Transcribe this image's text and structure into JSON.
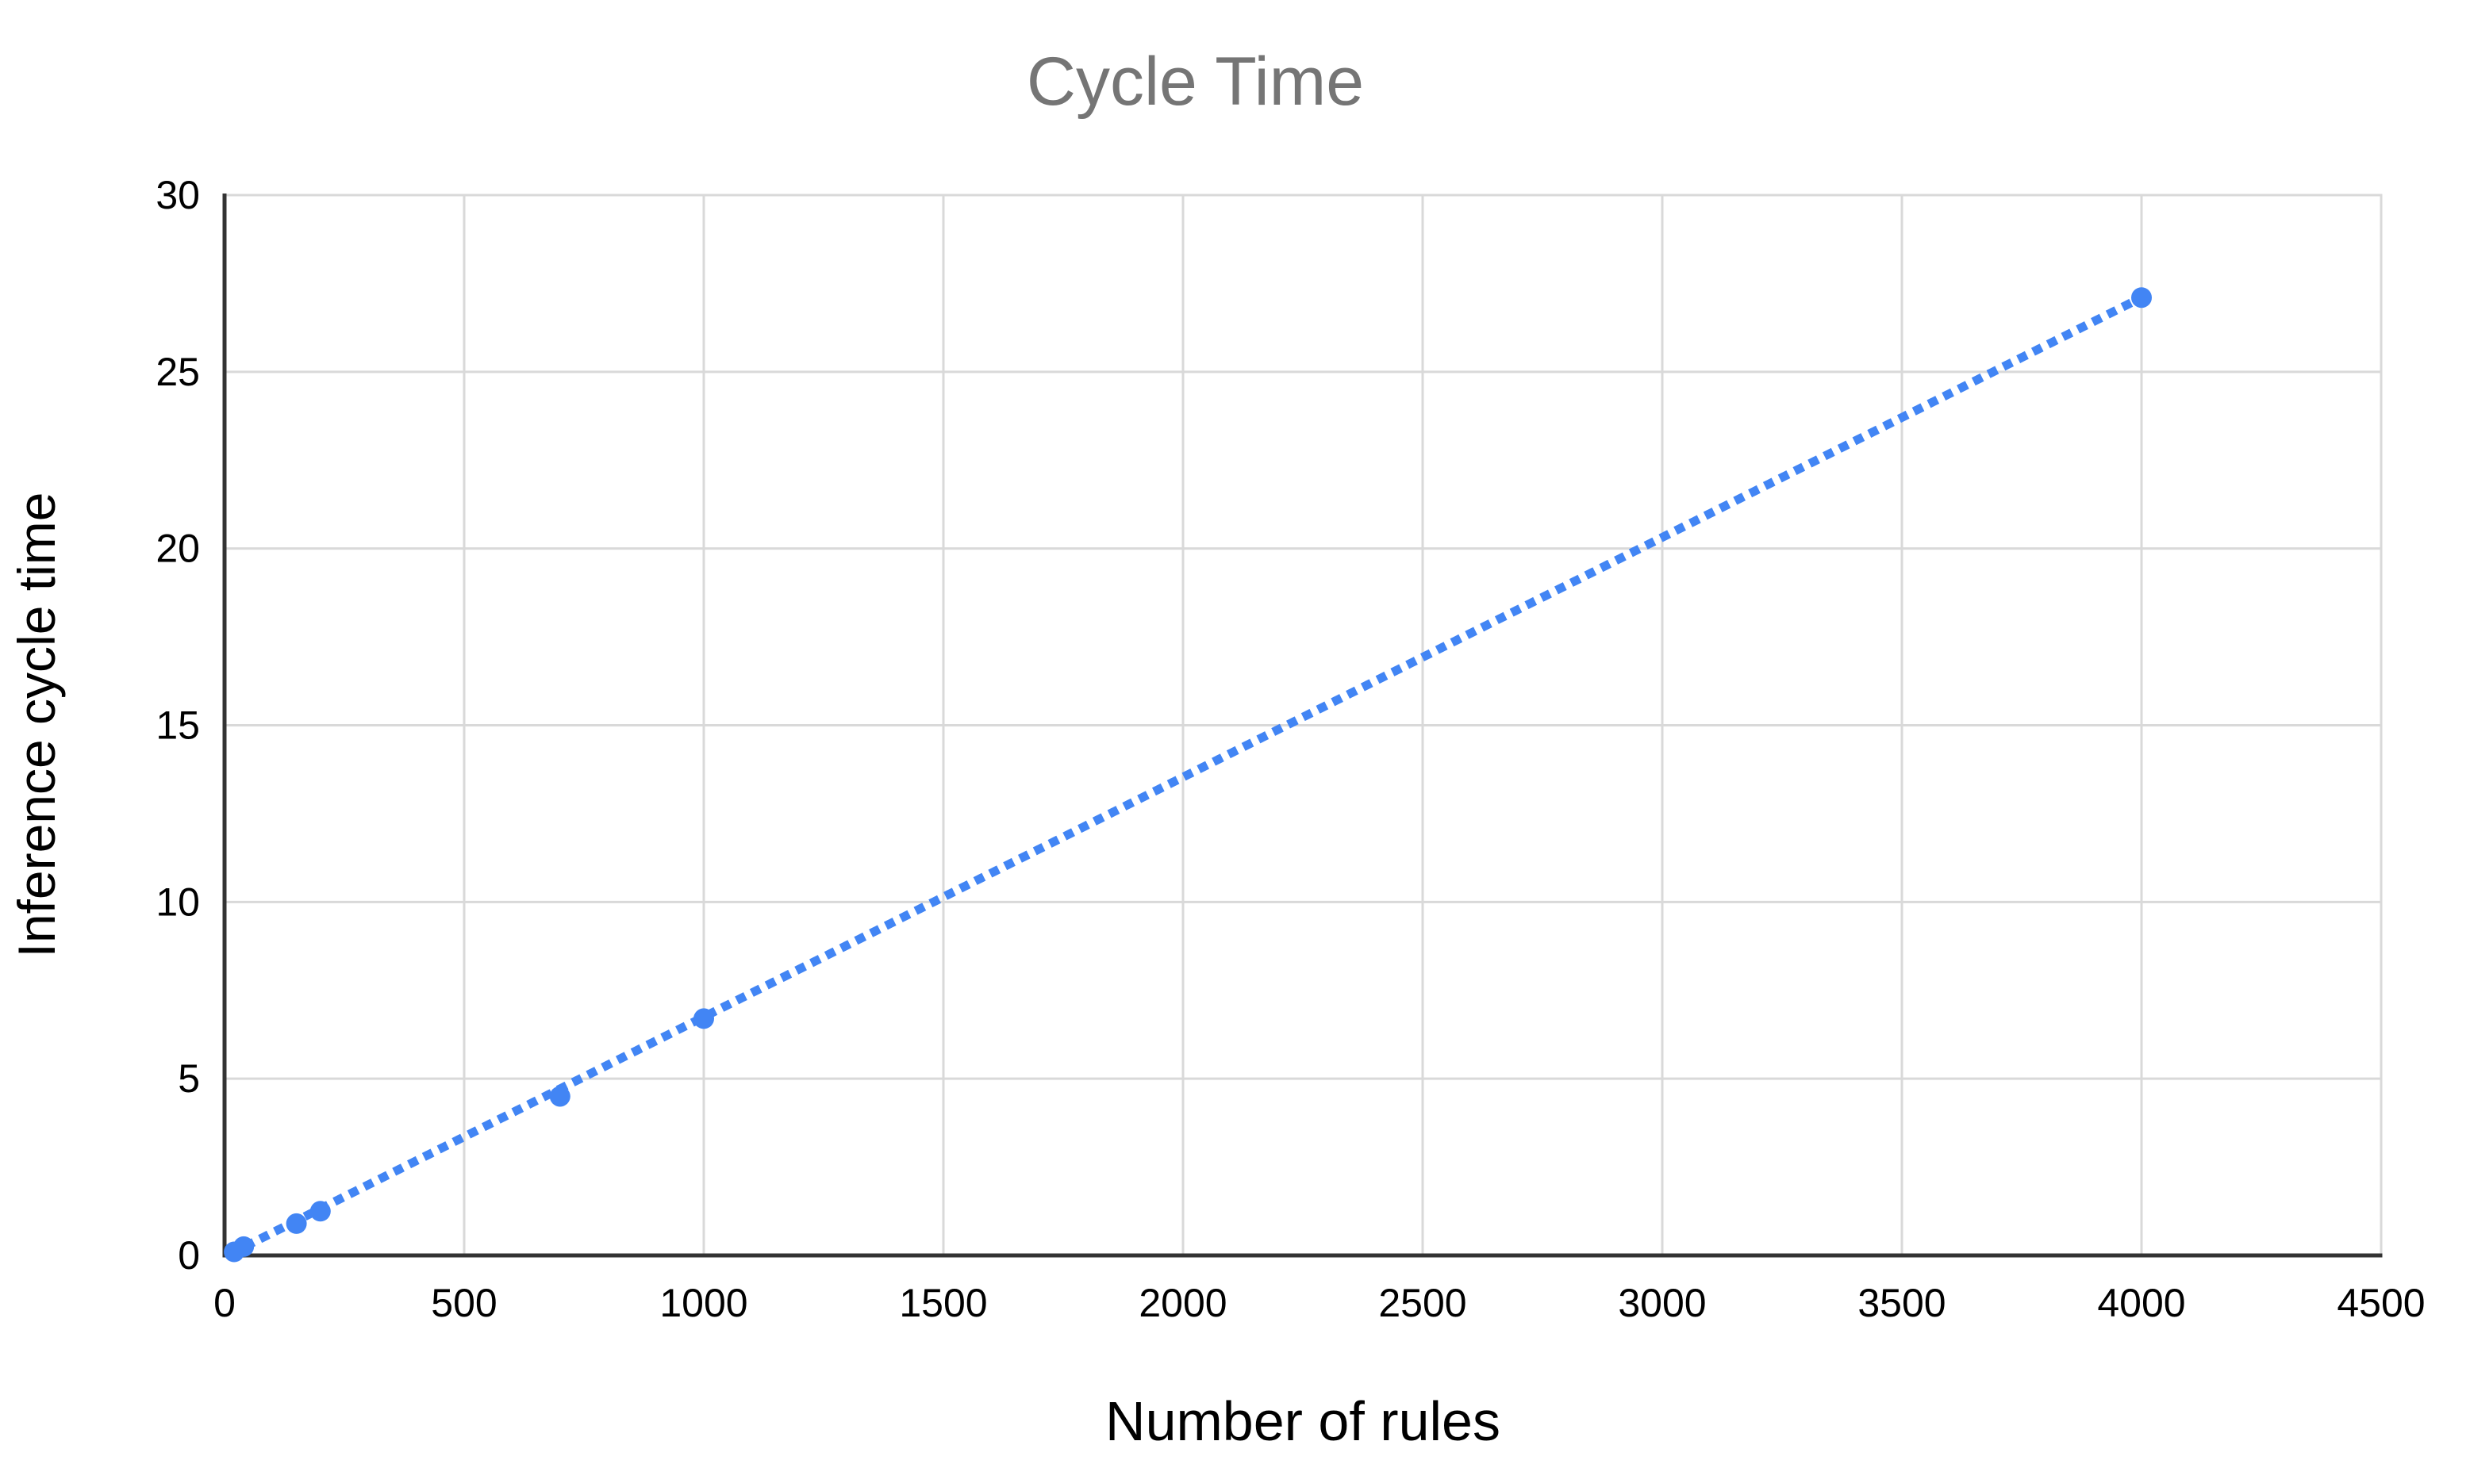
{
  "chart_data": {
    "type": "scatter",
    "title": "Cycle Time",
    "xlabel": "Number of rules",
    "ylabel": "Inference cycle time",
    "xlim": [
      0,
      4500
    ],
    "ylim": [
      0,
      30
    ],
    "x_ticks": [
      0,
      500,
      1000,
      1500,
      2000,
      2500,
      3000,
      3500,
      4000,
      4500
    ],
    "y_ticks": [
      0,
      5,
      10,
      15,
      20,
      25,
      30
    ],
    "grid": true,
    "legend": "none",
    "series": [
      {
        "name": "Inference cycle time",
        "marker": "circle",
        "points": [
          {
            "x": 20,
            "y": 0.1
          },
          {
            "x": 40,
            "y": 0.25
          },
          {
            "x": 150,
            "y": 0.9
          },
          {
            "x": 200,
            "y": 1.25
          },
          {
            "x": 700,
            "y": 4.5
          },
          {
            "x": 1000,
            "y": 6.7
          },
          {
            "x": 4000,
            "y": 27.1
          }
        ]
      }
    ],
    "trendline": {
      "type": "linear",
      "style": "dotted",
      "x1": 20,
      "y1": 0.1,
      "x2": 4000,
      "y2": 27.1
    },
    "colors": {
      "series": "#4285f4",
      "title": "#757575",
      "axis_title": "#000000",
      "tick_label": "#000000",
      "gridline": "#d9d9d9",
      "axis_line": "#333333",
      "background": "#ffffff"
    }
  }
}
